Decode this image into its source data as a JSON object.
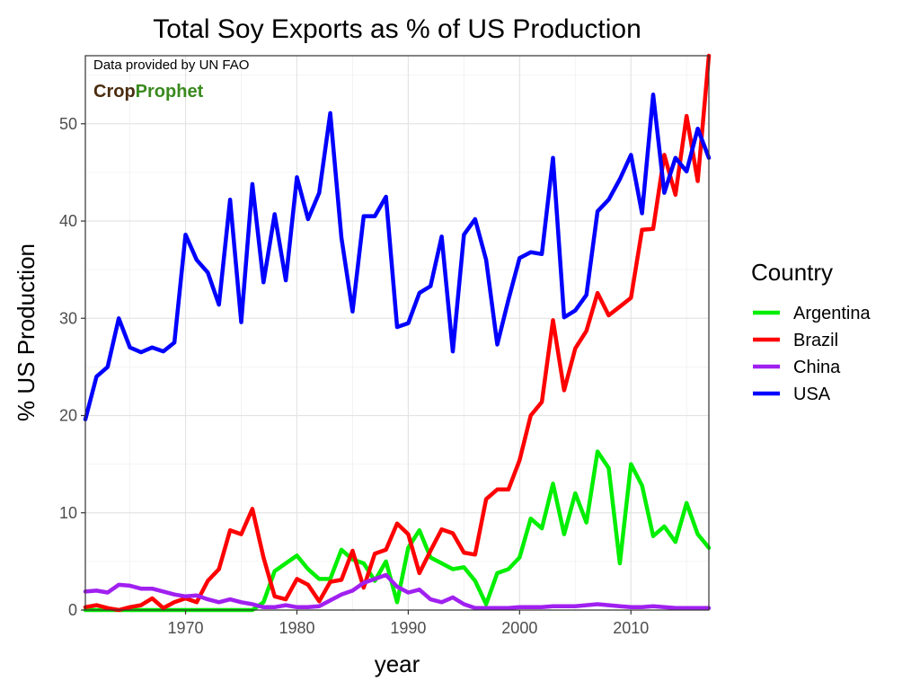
{
  "chart_data": {
    "type": "line",
    "title": "Total Soy Exports as % of US Production",
    "xlabel": "year",
    "ylabel": "% US Production",
    "caption": "Data provided by UN FAO",
    "brand": {
      "part1": "Crop",
      "part2": "Prophet"
    },
    "xlim": [
      1961,
      2017
    ],
    "ylim": [
      0,
      57
    ],
    "xticks": [
      1970,
      1980,
      1990,
      2000,
      2010
    ],
    "yticks": [
      0,
      10,
      20,
      30,
      40,
      50
    ],
    "grid": true,
    "legend": {
      "title": "Country",
      "position": "right"
    },
    "x": [
      1961,
      1962,
      1963,
      1964,
      1965,
      1966,
      1967,
      1968,
      1969,
      1970,
      1971,
      1972,
      1973,
      1974,
      1975,
      1976,
      1977,
      1978,
      1979,
      1980,
      1981,
      1982,
      1983,
      1984,
      1985,
      1986,
      1987,
      1988,
      1989,
      1990,
      1991,
      1992,
      1993,
      1994,
      1995,
      1996,
      1997,
      1998,
      1999,
      2000,
      2001,
      2002,
      2003,
      2004,
      2005,
      2006,
      2007,
      2008,
      2009,
      2010,
      2011,
      2012,
      2013,
      2014,
      2015,
      2016,
      2017
    ],
    "series": [
      {
        "name": "Argentina",
        "color": "#00ee00",
        "values": [
          0,
          0,
          0,
          0,
          0,
          0,
          0,
          0,
          0,
          0,
          0,
          0,
          0,
          0,
          0,
          0,
          0.8,
          4,
          4.8,
          5.6,
          4.2,
          3.2,
          3.2,
          6.2,
          5.2,
          4.8,
          3,
          5,
          0.8,
          6.4,
          8.2,
          5.4,
          4.8,
          4.2,
          4.4,
          3,
          0.6,
          3.8,
          4.2,
          5.4,
          9.4,
          8.4,
          13,
          7.8,
          12,
          9,
          16.3,
          14.6,
          4.8,
          15,
          12.8,
          7.6,
          8.6,
          7,
          11,
          7.8,
          6.4
        ]
      },
      {
        "name": "Brazil",
        "color": "#ff0000",
        "values": [
          0.3,
          0.5,
          0.2,
          0,
          0.3,
          0.5,
          1.2,
          0.2,
          0.8,
          1.2,
          0.8,
          3,
          4.2,
          8.2,
          7.8,
          10.4,
          5.4,
          1.4,
          1.1,
          3.2,
          2.6,
          0.9,
          2.9,
          3.1,
          6.1,
          2.3,
          5.8,
          6.2,
          8.9,
          7.8,
          3.8,
          6.1,
          8.3,
          7.9,
          5.9,
          5.7,
          11.4,
          12.4,
          12.4,
          15.4,
          20,
          21.4,
          29.8,
          22.6,
          26.9,
          28.7,
          32.6,
          30.3,
          31.2,
          32.1,
          39.1,
          39.2,
          46.8,
          42.7,
          50.8,
          44.1,
          57
        ]
      },
      {
        "name": "China",
        "color": "#a020f0",
        "values": [
          1.9,
          2,
          1.8,
          2.6,
          2.5,
          2.2,
          2.2,
          1.9,
          1.6,
          1.4,
          1.5,
          1.1,
          0.8,
          1.1,
          0.8,
          0.6,
          0.3,
          0.3,
          0.5,
          0.3,
          0.3,
          0.4,
          1,
          1.6,
          2,
          2.8,
          3.2,
          3.6,
          2.4,
          1.8,
          2.1,
          1.1,
          0.8,
          1.3,
          0.6,
          0.2,
          0.2,
          0.2,
          0.2,
          0.3,
          0.3,
          0.3,
          0.4,
          0.4,
          0.4,
          0.5,
          0.6,
          0.5,
          0.4,
          0.3,
          0.3,
          0.4,
          0.3,
          0.2,
          0.2,
          0.2,
          0.2
        ]
      },
      {
        "name": "USA",
        "color": "#0000ff",
        "values": [
          19.6,
          24,
          25,
          30,
          27,
          26.5,
          27,
          26.6,
          27.5,
          38.6,
          36,
          34.7,
          31.4,
          42.2,
          29.6,
          43.8,
          33.7,
          40.7,
          33.9,
          44.5,
          40.2,
          42.9,
          51.1,
          38.3,
          30.7,
          40.5,
          40.5,
          42.5,
          29.1,
          29.5,
          32.6,
          33.3,
          38.4,
          26.6,
          38.6,
          40.2,
          36,
          27.3,
          31.9,
          36.2,
          36.8,
          36.6,
          46.5,
          30.1,
          30.8,
          32.4,
          41,
          42.2,
          44.3,
          46.8,
          40.8,
          53,
          42.9,
          46.5,
          45.1,
          49.5,
          46.5
        ]
      }
    ]
  }
}
